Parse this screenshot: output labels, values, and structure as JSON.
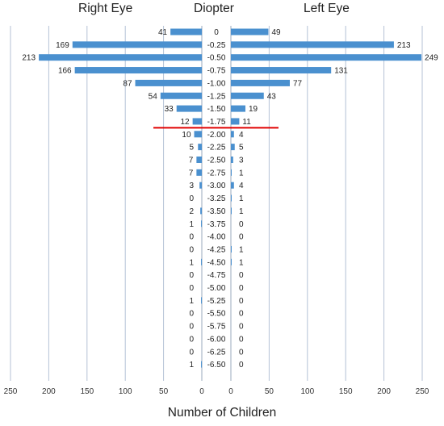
{
  "chart_data": {
    "type": "bar",
    "orientation": "horizontal",
    "layout": "back-to-back",
    "headers": {
      "left": "Right Eye",
      "center": "Diopter",
      "right": "Left Eye"
    },
    "xlabel": "Number of Children",
    "xlim": [
      0,
      250
    ],
    "xticks": [
      "250",
      "200",
      "150",
      "100",
      "50",
      "0",
      "0",
      "50",
      "100",
      "150",
      "200",
      "250"
    ],
    "grid": "vertical",
    "bar_color": "#4a90cf",
    "threshold_color": "#e00000",
    "threshold_between": [
      "-1.75",
      "-2.00"
    ],
    "categories": [
      "0",
      "-0.25",
      "-0.50",
      "-0.75",
      "-1.00",
      "-1.25",
      "-1.50",
      "-1.75",
      "-2.00",
      "-2.25",
      "-2.50",
      "-2.75",
      "-3.00",
      "-3.25",
      "-3.50",
      "-3.75",
      "-4.00",
      "-4.25",
      "-4.50",
      "-4.75",
      "-5.00",
      "-5.25",
      "-5.50",
      "-5.75",
      "-6.00",
      "-6.25",
      "-6.50"
    ],
    "series": [
      {
        "name": "Right Eye",
        "values": [
          41,
          169,
          213,
          166,
          87,
          54,
          33,
          12,
          10,
          5,
          7,
          7,
          3,
          0,
          2,
          1,
          0,
          0,
          1,
          0,
          0,
          1,
          0,
          0,
          0,
          0,
          1
        ]
      },
      {
        "name": "Left Eye",
        "values": [
          49,
          213,
          249,
          131,
          77,
          43,
          19,
          11,
          4,
          5,
          3,
          1,
          4,
          1,
          1,
          0,
          0,
          1,
          1,
          0,
          0,
          0,
          0,
          0,
          0,
          0,
          0
        ]
      }
    ]
  }
}
